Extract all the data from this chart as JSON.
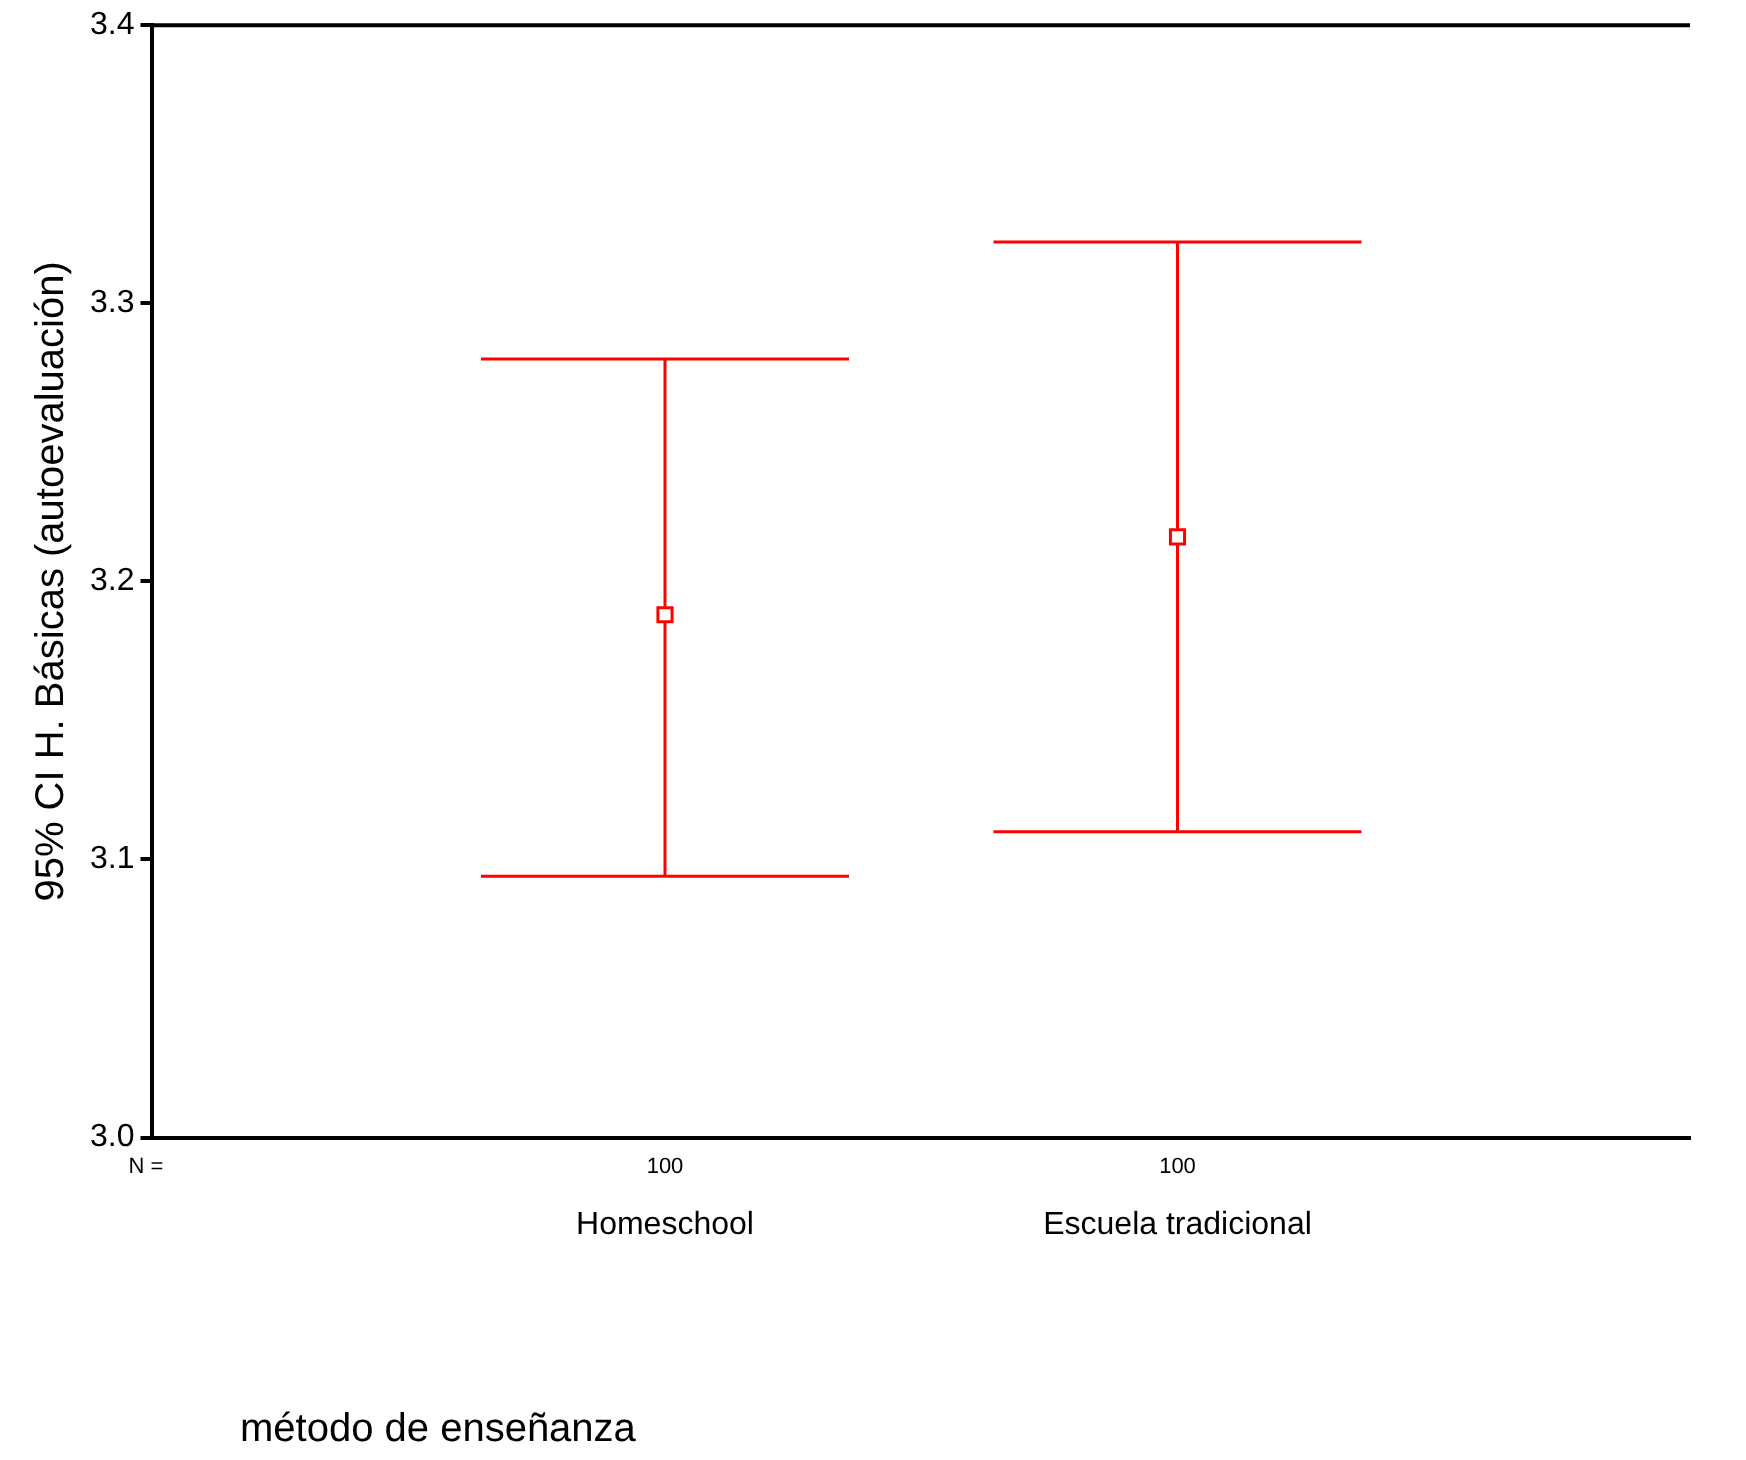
{
  "chart_data": {
    "type": "scatter",
    "ylabel": "95% CI H. Básicas (autoevaluación)",
    "xlabel": "método de enseñanza",
    "categories": [
      "Homeschool",
      "Escuela tradicional"
    ],
    "color": "#ff0000",
    "values": [
      3.188,
      3.216
    ],
    "errors": [
      [
        3.094,
        3.28
      ],
      [
        3.11,
        3.322
      ]
    ],
    "ylim": [
      3.0,
      3.4
    ],
    "yticks": [
      {
        "value": 3.0,
        "label": "3.0"
      },
      {
        "value": 3.1,
        "label": "3.1"
      },
      {
        "value": 3.2,
        "label": "3.2"
      },
      {
        "value": 3.3,
        "label": "3.3"
      },
      {
        "value": 3.4,
        "label": "3.4"
      }
    ],
    "annotations": [
      "N =",
      "100",
      "100"
    ],
    "marker": "square",
    "grid": false,
    "legend": false
  }
}
